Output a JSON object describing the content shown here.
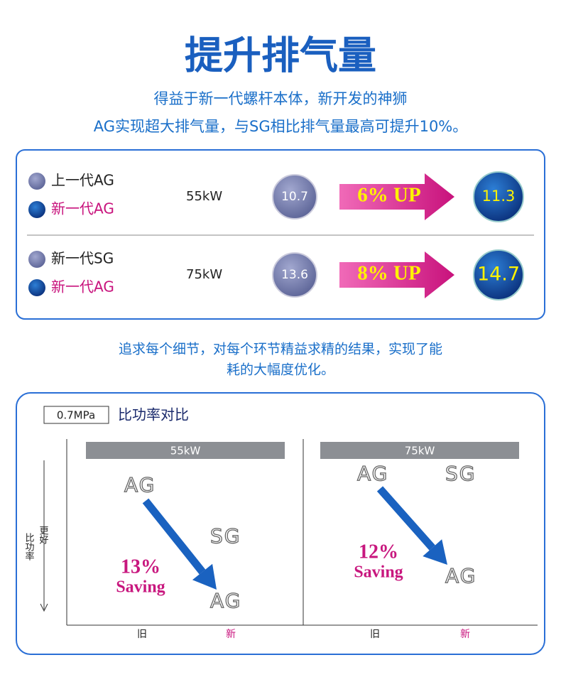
{
  "header": {
    "title": "提升排气量",
    "subtitle": [
      "得益于新一代螺杆本体，新开发的神狮",
      "AG实现超大排气量，与SG相比排气量最高可提升10%。"
    ]
  },
  "comparison": {
    "rows": [
      {
        "legend": [
          "上一代AG",
          "新一代AG"
        ],
        "power": "55kW",
        "before": "10.7",
        "gain": "6% UP",
        "after": "11.3"
      },
      {
        "legend": [
          "新一代SG",
          "新一代AG"
        ],
        "power": "75kW",
        "before": "13.6",
        "gain": "8% UP",
        "after": "14.7"
      }
    ]
  },
  "note": [
    "追求每个细节，对每个环节精益求精的结果，实现了能",
    "耗的大幅度优化。"
  ],
  "efficiency_chart": {
    "pressure": "0.7MPa",
    "title": "比功率对比",
    "y_label": "比功率",
    "y_direction": "更好",
    "panels": [
      {
        "power": "55kW",
        "old_model": "AG",
        "reference_model": "SG",
        "new_model": "AG",
        "saving": "13%",
        "saving_label": "Saving",
        "x_labels": [
          "旧",
          "新"
        ]
      },
      {
        "power": "75kW",
        "old_model": "AG",
        "reference_model": "SG",
        "new_model": "AG",
        "saving": "12%",
        "saving_label": "Saving",
        "x_labels": [
          "旧",
          "新"
        ]
      }
    ]
  }
}
